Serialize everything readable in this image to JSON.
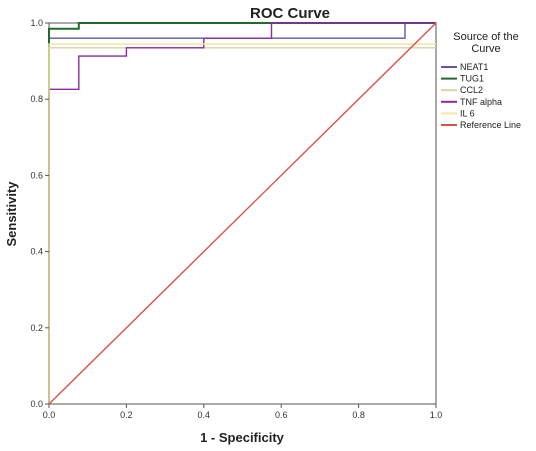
{
  "chart_data": {
    "type": "line",
    "title": "ROC Curve",
    "xlabel": "1 - Specificity",
    "ylabel": "Sensitivity",
    "xlim": [
      0.0,
      1.0
    ],
    "ylim": [
      0.0,
      1.0
    ],
    "xticks": [
      "0.0",
      "0.2",
      "0.4",
      "0.6",
      "0.8",
      "1.0"
    ],
    "yticks": [
      "0.0",
      "0.2",
      "0.4",
      "0.6",
      "0.8",
      "1.0"
    ],
    "grid": false,
    "legend": {
      "title": "Source of the Curve",
      "placement": "right"
    },
    "series": [
      {
        "name": "NEAT1",
        "color": "#5a5aa8",
        "x": [
          0.0,
          0.0,
          0.92,
          0.92,
          1.0
        ],
        "y": [
          0.0,
          0.96,
          0.96,
          1.0,
          1.0
        ]
      },
      {
        "name": "TUG1",
        "color": "#1f6b2a",
        "x": [
          0.0,
          0.0,
          0.077,
          0.077,
          1.0
        ],
        "y": [
          0.0,
          0.985,
          0.985,
          1.0,
          1.0
        ]
      },
      {
        "name": "CCL2",
        "color": "#d9d2a8",
        "x": [
          0.0,
          0.0,
          1.0
        ],
        "y": [
          0.0,
          0.935,
          0.935
        ]
      },
      {
        "name": "TNF alpha",
        "color": "#8a2b9e",
        "x": [
          0.0,
          0.0,
          0.077,
          0.077,
          0.2,
          0.2,
          0.4,
          0.4,
          0.575,
          0.575,
          1.0
        ],
        "y": [
          0.0,
          0.826,
          0.826,
          0.913,
          0.913,
          0.935,
          0.935,
          0.96,
          0.96,
          1.0,
          1.0
        ]
      },
      {
        "name": "IL 6",
        "color": "#f2e6a0",
        "x": [
          0.0,
          0.0,
          1.0
        ],
        "y": [
          0.0,
          0.945,
          0.945
        ]
      },
      {
        "name": "Reference Line",
        "color": "#d9534a",
        "x": [
          0.0,
          1.0
        ],
        "y": [
          0.0,
          1.0
        ]
      }
    ]
  }
}
